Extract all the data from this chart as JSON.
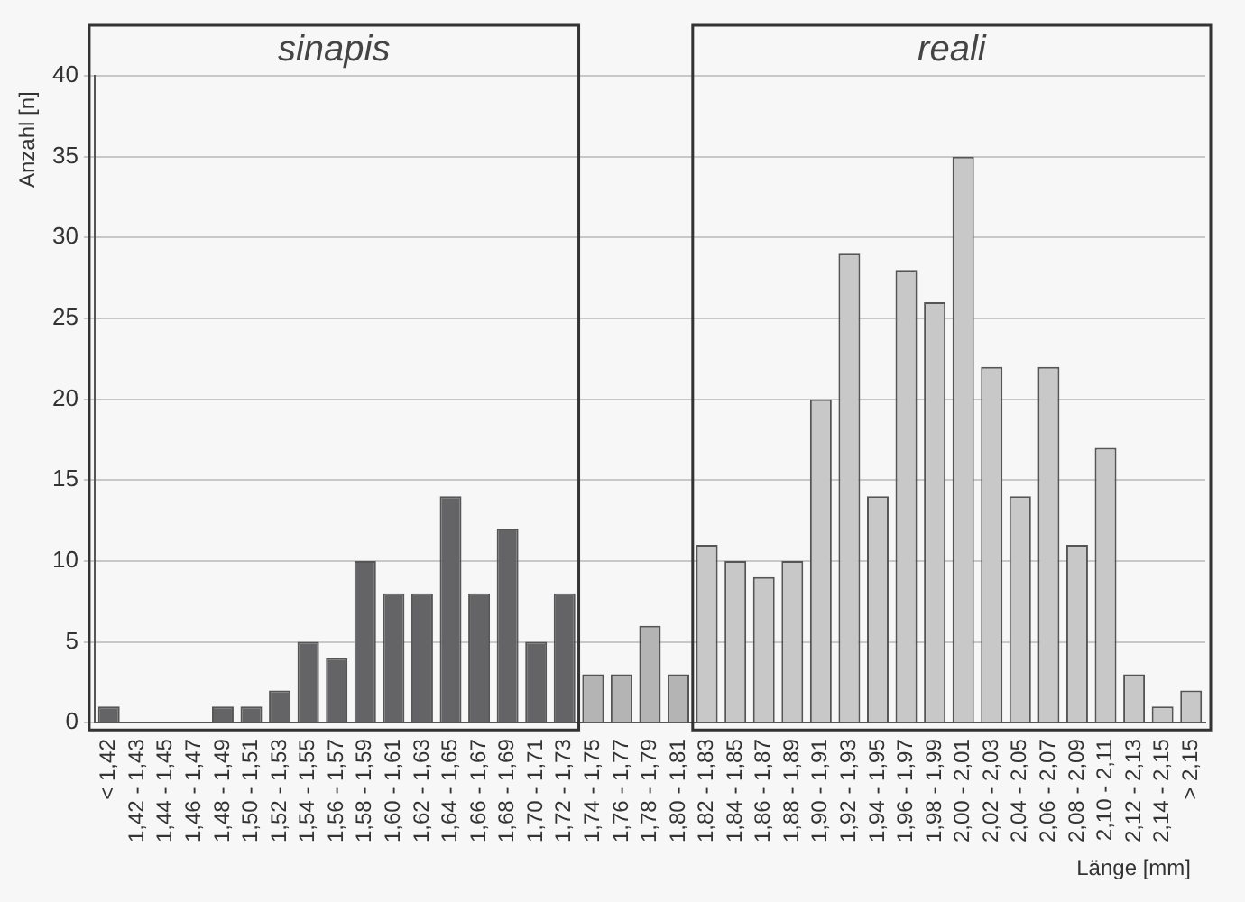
{
  "chart_data": {
    "type": "bar",
    "xlabel": "Länge [mm]",
    "ylabel": "Anzahl [n]",
    "categories": [
      "< 1,42",
      "1,42 - 1,43",
      "1,44 - 1,45",
      "1,46 - 1,47",
      "1,48 - 1,49",
      "1,50 - 1,51",
      "1,52 - 1,53",
      "1,54 - 1,55",
      "1,56 - 1,57",
      "1,58 - 1,59",
      "1,60 - 1,61",
      "1,62 - 1,63",
      "1,64 - 1,65",
      "1,66 - 1,67",
      "1,68 - 1,69",
      "1,70 - 1,71",
      "1,72 - 1,73",
      "1,74 - 1,75",
      "1,76 - 1,77",
      "1,78 - 1,79",
      "1,80 - 1,81",
      "1,82 - 1,83",
      "1,84 - 1,85",
      "1,86 - 1,87",
      "1,88 - 1,89",
      "1,90 - 1,91",
      "1,92 - 1,93",
      "1,94 - 1,95",
      "1,96 - 1,97",
      "1,98 - 1,99",
      "2,00 - 2,01",
      "2,02 - 2,03",
      "2,04 - 2,05",
      "2,06 - 2,07",
      "2,08 - 2,09",
      "2,10 - 2,11",
      "2,12 - 2,13",
      "2,14 - 2,15",
      "> 2,15"
    ],
    "values": [
      1,
      0,
      0,
      0,
      1,
      1,
      2,
      5,
      4,
      10,
      8,
      8,
      14,
      8,
      12,
      5,
      8,
      3,
      3,
      6,
      3,
      11,
      10,
      9,
      10,
      20,
      29,
      14,
      28,
      26,
      35,
      22,
      14,
      22,
      11,
      17,
      3,
      1,
      2
    ],
    "colors": [
      "#646466",
      "#646466",
      "#646466",
      "#646466",
      "#646466",
      "#646466",
      "#646466",
      "#646466",
      "#646466",
      "#646466",
      "#646466",
      "#646466",
      "#646466",
      "#646466",
      "#646466",
      "#646466",
      "#646466",
      "#b4b4b4",
      "#b4b4b4",
      "#b4b4b4",
      "#b4b4b4",
      "#c8c8c8",
      "#c8c8c8",
      "#c8c8c8",
      "#c8c8c8",
      "#c8c8c8",
      "#c8c8c8",
      "#c8c8c8",
      "#c8c8c8",
      "#c8c8c8",
      "#c8c8c8",
      "#c8c8c8",
      "#c8c8c8",
      "#c8c8c8",
      "#c8c8c8",
      "#c8c8c8",
      "#c8c8c8",
      "#c8c8c8",
      "#c8c8c8"
    ],
    "ylim": [
      0,
      40
    ],
    "yticks": [
      0,
      5,
      10,
      15,
      20,
      25,
      30,
      35,
      40
    ],
    "grid": "y",
    "legend": false,
    "annotations": [
      "sinapis",
      "reali"
    ]
  }
}
